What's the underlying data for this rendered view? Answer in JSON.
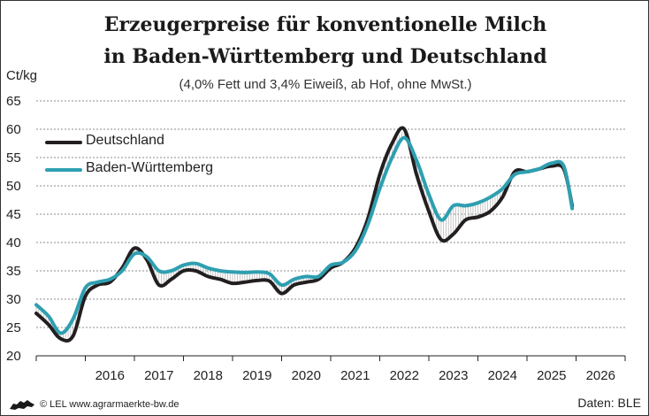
{
  "chart_data": {
    "type": "line",
    "title": "Erzeugerpreise für konventionelle Milch",
    "title_line2": "in Baden-Württemberg und Deutschland",
    "subtitle": "(4,0% Fett und 3,4% Eiweiß, ab Hof, ohne MwSt.)",
    "y_unit": "Ct/kg",
    "ylim": [
      20,
      65
    ],
    "yticks": [
      20,
      25,
      30,
      35,
      40,
      45,
      50,
      55,
      60,
      65
    ],
    "xlim": [
      2015.0,
      2027.0
    ],
    "x_labels": [
      "2016",
      "2017",
      "2018",
      "2019",
      "2020",
      "2021",
      "2022",
      "2023",
      "2024",
      "2025",
      "2026"
    ],
    "grid": true,
    "legend_position": "top-left",
    "series": [
      {
        "name": "Deutschland",
        "color": "#231f20",
        "x": [
          2015.0,
          2015.25,
          2015.5,
          2015.75,
          2016.0,
          2016.25,
          2016.5,
          2016.75,
          2017.0,
          2017.25,
          2017.5,
          2017.75,
          2018.0,
          2018.25,
          2018.5,
          2018.75,
          2019.0,
          2019.25,
          2019.5,
          2019.75,
          2020.0,
          2020.25,
          2020.5,
          2020.75,
          2021.0,
          2021.25,
          2021.5,
          2021.75,
          2022.0,
          2022.25,
          2022.5,
          2022.75,
          2023.0,
          2023.25,
          2023.5,
          2023.75,
          2024.0,
          2024.25,
          2024.5,
          2024.75,
          2025.0,
          2025.25,
          2025.5,
          2025.75,
          2025.92
        ],
        "y": [
          27.5,
          25.5,
          23.0,
          23.5,
          30.5,
          32.5,
          33.0,
          35.5,
          39.0,
          37.0,
          32.5,
          33.5,
          35.0,
          35.0,
          34.0,
          33.5,
          32.8,
          33.0,
          33.3,
          33.2,
          31.0,
          32.5,
          33.0,
          33.5,
          35.5,
          36.5,
          39.0,
          44.0,
          52.0,
          57.5,
          60.0,
          52.0,
          45.5,
          40.5,
          41.5,
          44.0,
          44.5,
          45.5,
          48.0,
          52.5,
          52.5,
          53.0,
          53.5,
          53.0,
          46.5
        ]
      },
      {
        "name": "Baden-Württemberg",
        "color": "#2e9fb0",
        "x": [
          2015.0,
          2015.25,
          2015.5,
          2015.75,
          2016.0,
          2016.25,
          2016.5,
          2016.75,
          2017.0,
          2017.25,
          2017.5,
          2017.75,
          2018.0,
          2018.25,
          2018.5,
          2018.75,
          2019.0,
          2019.25,
          2019.5,
          2019.75,
          2020.0,
          2020.25,
          2020.5,
          2020.75,
          2021.0,
          2021.25,
          2021.5,
          2021.75,
          2022.0,
          2022.25,
          2022.5,
          2022.75,
          2023.0,
          2023.25,
          2023.5,
          2023.75,
          2024.0,
          2024.25,
          2024.5,
          2024.75,
          2025.0,
          2025.25,
          2025.5,
          2025.75,
          2025.92
        ],
        "y": [
          29.0,
          27.0,
          24.0,
          26.5,
          32.0,
          33.0,
          33.5,
          35.0,
          38.0,
          37.5,
          35.0,
          35.0,
          36.0,
          36.3,
          35.5,
          35.0,
          34.8,
          34.7,
          34.8,
          34.5,
          32.5,
          33.5,
          34.0,
          34.0,
          36.0,
          36.5,
          38.5,
          43.0,
          49.5,
          55.0,
          58.5,
          54.5,
          48.5,
          44.0,
          46.5,
          46.5,
          47.0,
          48.0,
          49.5,
          52.0,
          52.5,
          53.0,
          54.0,
          53.5,
          46.0
        ]
      }
    ]
  },
  "footer": {
    "source_left": "© LEL www.agrarmaerkte-bw.de",
    "source_right": "Daten: BLE"
  }
}
